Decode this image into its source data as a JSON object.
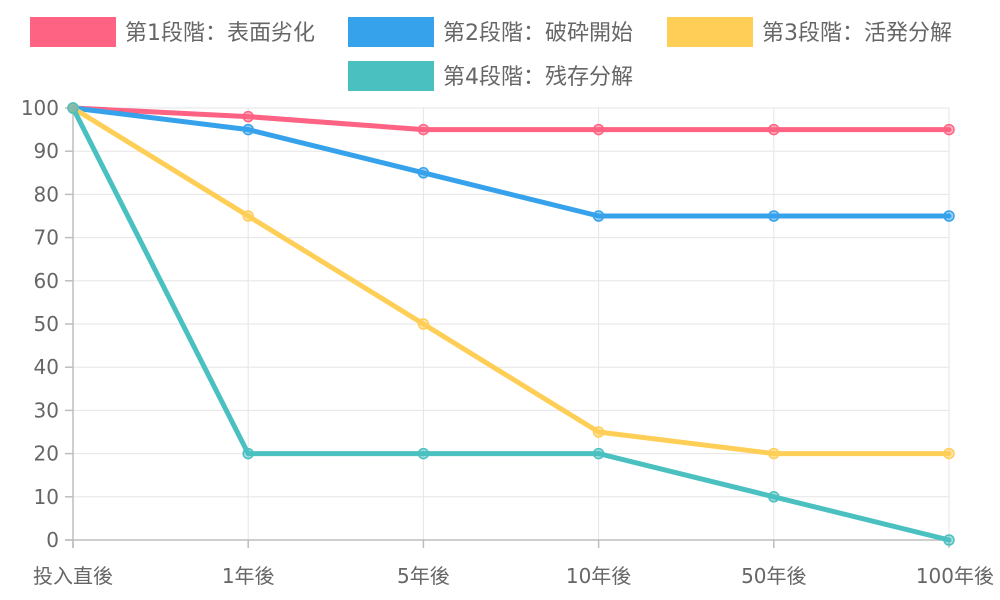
{
  "chart_data": {
    "type": "line",
    "categories": [
      "投入直後",
      "1年後",
      "5年後",
      "10年後",
      "50年後",
      "100年後"
    ],
    "series": [
      {
        "name": "第1段階：表面劣化",
        "color": "#ff6384",
        "values": [
          100,
          98,
          95,
          95,
          95,
          95
        ]
      },
      {
        "name": "第2段階：破砕開始",
        "color": "#36a2eb",
        "values": [
          100,
          95,
          85,
          75,
          75,
          75
        ]
      },
      {
        "name": "第3段階：活発分解",
        "color": "#ffce56",
        "values": [
          100,
          75,
          50,
          25,
          20,
          20
        ]
      },
      {
        "name": "第4段階：残存分解",
        "color": "#4bc0c0",
        "values": [
          100,
          20,
          20,
          20,
          10,
          0
        ]
      }
    ],
    "ylim": [
      0,
      100
    ],
    "yticks": [
      0,
      10,
      20,
      30,
      40,
      50,
      60,
      70,
      80,
      90,
      100
    ],
    "legend_position": "top",
    "grid": true
  }
}
